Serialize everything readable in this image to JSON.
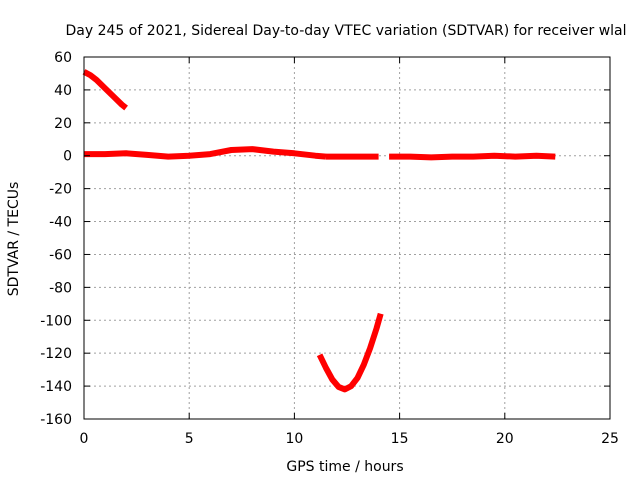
{
  "chart_data": {
    "type": "line",
    "title": "Day 245 of 2021, Sidereal Day-to-day VTEC variation (SDTVAR) for receiver wlal",
    "xlabel": "GPS time / hours",
    "ylabel": "SDTVAR / TECUs",
    "xlim": [
      0,
      25
    ],
    "ylim": [
      -160,
      60
    ],
    "xticks": [
      0,
      5,
      10,
      15,
      20,
      25
    ],
    "yticks": [
      -160,
      -140,
      -120,
      -100,
      -80,
      -60,
      -40,
      -20,
      0,
      20,
      40,
      60
    ],
    "xtick_labels": [
      "0",
      "5",
      "10",
      "15",
      "20",
      "25"
    ],
    "ytick_labels": [
      "-160",
      "-140",
      "-120",
      "-100",
      "-80",
      "-60",
      "-40",
      "-20",
      "0",
      "20",
      "40",
      "60"
    ],
    "grid": true,
    "color": "#ff0000",
    "series": [
      {
        "x": [
          0.0,
          0.3,
          0.6,
          1.0,
          1.4,
          1.8,
          2.0
        ],
        "y": [
          51,
          49,
          46,
          41,
          36,
          31,
          29
        ]
      },
      {
        "x": [
          0.0,
          1.0,
          2.0,
          3.0,
          4.0,
          5.0,
          6.0,
          7.0,
          8.0,
          9.0,
          10.0,
          11.0,
          11.5
        ],
        "y": [
          1,
          1,
          1.5,
          0.5,
          -0.5,
          0,
          1,
          3.5,
          4,
          2.5,
          1.5,
          0,
          -0.5
        ]
      },
      {
        "x": [
          11.5,
          12.5,
          13.5,
          14.0
        ],
        "y": [
          -0.5,
          -0.5,
          -0.5,
          -0.5
        ]
      },
      {
        "x": [
          14.5,
          15.5,
          16.5,
          17.5,
          18.5,
          19.5,
          20.5,
          21.5,
          22.4
        ],
        "y": [
          -0.5,
          -0.5,
          -1,
          -0.5,
          -0.5,
          0,
          -0.5,
          0,
          -0.5
        ]
      },
      {
        "x": [
          11.2,
          11.5,
          11.8,
          12.1,
          12.4,
          12.7,
          13.0,
          13.3,
          13.6,
          13.9,
          14.1
        ],
        "y": [
          -121,
          -129,
          -136,
          -140.5,
          -142,
          -140,
          -135,
          -127,
          -117,
          -105,
          -96
        ]
      }
    ]
  }
}
